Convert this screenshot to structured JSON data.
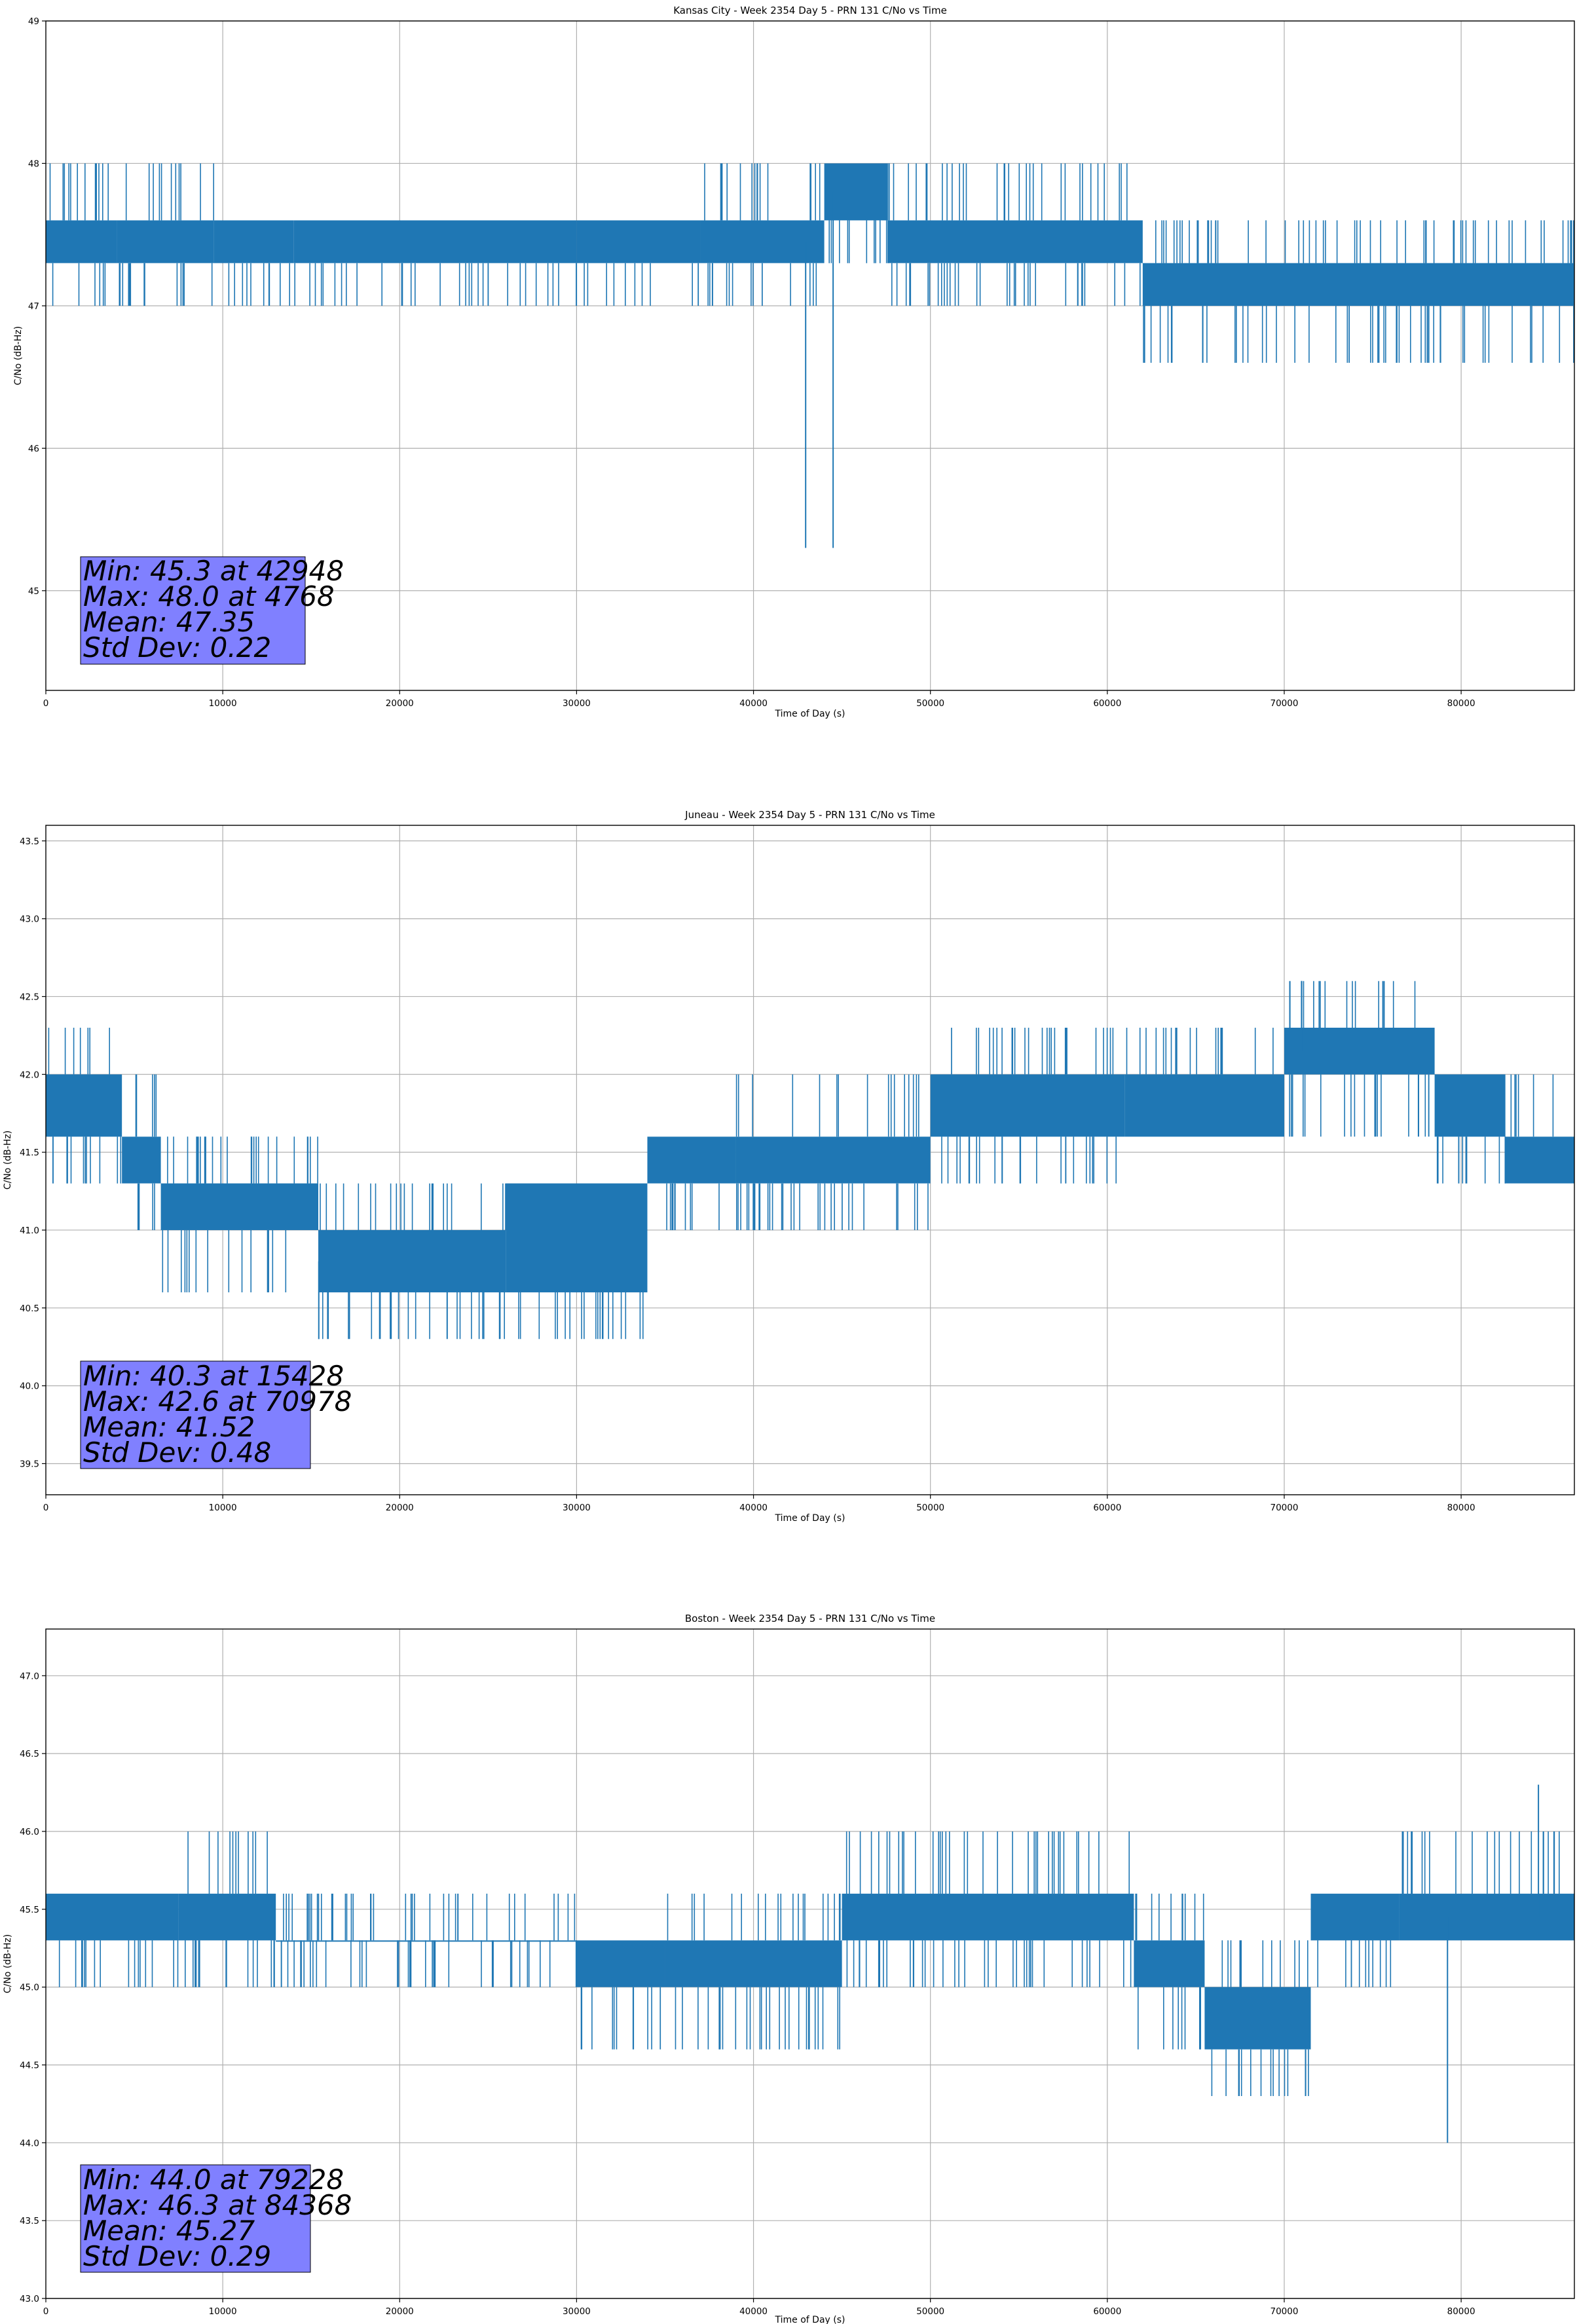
{
  "figure": {
    "series_color": "#1f77b4",
    "stats_box_color": "#8080ff"
  },
  "chart_data": [
    {
      "type": "line",
      "title": "Kansas City - Week 2354 Day 5 - PRN 131 C/No vs Time",
      "xlabel": "Time of Day (s)",
      "ylabel": "C/No (dB-Hz)",
      "xlim": [
        0,
        86400
      ],
      "ylim": [
        44.3,
        49.0
      ],
      "xticks": [
        0,
        10000,
        20000,
        30000,
        40000,
        50000,
        60000,
        70000,
        80000
      ],
      "yticks": [
        45,
        46,
        47,
        48,
        49
      ],
      "ytick_labels": [
        "45",
        "46",
        "47",
        "48",
        "49"
      ],
      "grid": true,
      "series": [
        {
          "name": "PRN 131 C/No",
          "levels": [
            47.0,
            47.3,
            47.6,
            48.0
          ],
          "segments": [
            {
              "x": [
                0,
                4000
              ],
              "base": 47.3,
              "upper": 47.6,
              "up_spike": 48.0,
              "down_spike": 47.0
            },
            {
              "x": [
                4000,
                9500
              ],
              "base": 47.3,
              "upper": 47.6,
              "up_spike": 48.0,
              "down_spike": 47.0
            },
            {
              "x": [
                9500,
                14000
              ],
              "base": 47.3,
              "upper": 47.6,
              "up_spike": 47.6,
              "down_spike": 47.0
            },
            {
              "x": [
                14000,
                30000
              ],
              "base": 47.3,
              "upper": 47.6,
              "up_spike": 47.6,
              "down_spike": 47.0
            },
            {
              "x": [
                30000,
                37000
              ],
              "base": 47.3,
              "upper": 47.6,
              "up_spike": 47.6,
              "down_spike": 47.0
            },
            {
              "x": [
                37000,
                44000
              ],
              "base": 47.3,
              "upper": 47.6,
              "up_spike": 48.0,
              "down_spike": 47.0
            },
            {
              "x": [
                44000,
                47600
              ],
              "base": 47.6,
              "upper": 48.0,
              "up_spike": 48.0,
              "down_spike": 47.3
            },
            {
              "x": [
                47600,
                62000
              ],
              "base": 47.3,
              "upper": 47.6,
              "up_spike": 48.0,
              "down_spike": 47.0
            },
            {
              "x": [
                62000,
                86400
              ],
              "base": 47.0,
              "upper": 47.3,
              "up_spike": 47.6,
              "down_spike": 46.6
            }
          ],
          "extremes": [
            {
              "x": 42948,
              "y": 45.3
            },
            {
              "x": 44500,
              "y": 45.3
            }
          ]
        }
      ],
      "stats": [
        "Min: 45.3 at 42948",
        "Max: 48.0 at 4768",
        "Mean: 47.35",
        "Std Dev: 0.22"
      ]
    },
    {
      "type": "line",
      "title": "Juneau - Week 2354 Day 5 - PRN 131 C/No vs Time",
      "xlabel": "Time of Day (s)",
      "ylabel": "C/No (dB-Hz)",
      "xlim": [
        0,
        86400
      ],
      "ylim": [
        39.3,
        43.6
      ],
      "xticks": [
        0,
        10000,
        20000,
        30000,
        40000,
        50000,
        60000,
        70000,
        80000
      ],
      "yticks": [
        39.5,
        40.0,
        40.5,
        41.0,
        41.5,
        42.0,
        42.5,
        43.0,
        43.5
      ],
      "ytick_labels": [
        "39.5",
        "40.0",
        "40.5",
        "41.0",
        "41.5",
        "42.0",
        "42.5",
        "43.0",
        "43.5"
      ],
      "grid": true,
      "series": [
        {
          "name": "PRN 131 C/No",
          "levels": [
            40.3,
            40.6,
            41.0,
            41.3,
            41.6,
            42.0,
            42.3,
            42.6
          ],
          "segments": [
            {
              "x": [
                0,
                4300
              ],
              "base": 41.6,
              "upper": 42.0,
              "up_spike": 42.3,
              "down_spike": 41.3
            },
            {
              "x": [
                4300,
                6500
              ],
              "base": 41.3,
              "upper": 41.6,
              "up_spike": 42.0,
              "down_spike": 41.0
            },
            {
              "x": [
                6500,
                15400
              ],
              "base": 41.0,
              "upper": 41.3,
              "up_spike": 41.6,
              "down_spike": 40.6
            },
            {
              "x": [
                15400,
                26000
              ],
              "base": 40.6,
              "upper": 41.0,
              "up_spike": 41.3,
              "down_spike": 40.3
            },
            {
              "x": [
                26000,
                34000
              ],
              "base": 40.6,
              "upper": 41.3,
              "up_spike": 41.3,
              "down_spike": 40.3
            },
            {
              "x": [
                34000,
                39000
              ],
              "base": 41.3,
              "upper": 41.6,
              "up_spike": 41.6,
              "down_spike": 41.0
            },
            {
              "x": [
                39000,
                50000
              ],
              "base": 41.3,
              "upper": 41.6,
              "up_spike": 42.0,
              "down_spike": 41.0
            },
            {
              "x": [
                50000,
                61000
              ],
              "base": 41.6,
              "upper": 42.0,
              "up_spike": 42.3,
              "down_spike": 41.3
            },
            {
              "x": [
                61000,
                70000
              ],
              "base": 41.6,
              "upper": 42.0,
              "up_spike": 42.3,
              "down_spike": 41.6
            },
            {
              "x": [
                70000,
                78500
              ],
              "base": 42.0,
              "upper": 42.3,
              "up_spike": 42.6,
              "down_spike": 41.6
            },
            {
              "x": [
                78500,
                82500
              ],
              "base": 41.6,
              "upper": 42.0,
              "up_spike": 42.0,
              "down_spike": 41.3
            },
            {
              "x": [
                82500,
                86400
              ],
              "base": 41.3,
              "upper": 41.6,
              "up_spike": 42.0,
              "down_spike": 41.3
            }
          ],
          "extremes": [
            {
              "x": 15428,
              "y": 40.3
            },
            {
              "x": 70978,
              "y": 42.6
            }
          ]
        }
      ],
      "stats": [
        "Min: 40.3 at 15428",
        "Max: 42.6 at 70978",
        "Mean: 41.52",
        "Std Dev: 0.48"
      ]
    },
    {
      "type": "line",
      "title": "Boston - Week 2354 Day 5 - PRN 131 C/No vs Time",
      "xlabel": "Time of Day (s)",
      "ylabel": "C/No (dB-Hz)",
      "xlim": [
        0,
        86400
      ],
      "ylim": [
        43.0,
        47.3
      ],
      "xticks": [
        0,
        10000,
        20000,
        30000,
        40000,
        50000,
        60000,
        70000,
        80000
      ],
      "yticks": [
        43.0,
        43.5,
        44.0,
        44.5,
        45.0,
        45.5,
        46.0,
        46.5,
        47.0
      ],
      "ytick_labels": [
        "43.0",
        "43.5",
        "44.0",
        "44.5",
        "45.0",
        "45.5",
        "46.0",
        "46.5",
        "47.0"
      ],
      "grid": true,
      "series": [
        {
          "name": "PRN 131 C/No",
          "levels": [
            44.0,
            44.3,
            44.6,
            45.0,
            45.3,
            45.6,
            46.0,
            46.3
          ],
          "segments": [
            {
              "x": [
                0,
                7500
              ],
              "base": 45.3,
              "upper": 45.6,
              "up_spike": 45.6,
              "down_spike": 45.0
            },
            {
              "x": [
                7500,
                13000
              ],
              "base": 45.3,
              "upper": 45.6,
              "up_spike": 46.0,
              "down_spike": 45.0
            },
            {
              "x": [
                13000,
                30000
              ],
              "base": 45.3,
              "upper": 45.3,
              "up_spike": 45.6,
              "down_spike": 45.0
            },
            {
              "x": [
                30000,
                35000
              ],
              "base": 45.0,
              "upper": 45.3,
              "up_spike": 45.3,
              "down_spike": 44.6
            },
            {
              "x": [
                35000,
                45000
              ],
              "base": 45.0,
              "upper": 45.3,
              "up_spike": 45.6,
              "down_spike": 44.6
            },
            {
              "x": [
                45000,
                61500
              ],
              "base": 45.3,
              "upper": 45.6,
              "up_spike": 46.0,
              "down_spike": 45.0
            },
            {
              "x": [
                61500,
                65500
              ],
              "base": 45.0,
              "upper": 45.3,
              "up_spike": 45.6,
              "down_spike": 44.6
            },
            {
              "x": [
                65500,
                71500
              ],
              "base": 44.6,
              "upper": 45.0,
              "up_spike": 45.3,
              "down_spike": 44.3
            },
            {
              "x": [
                71500,
                76500
              ],
              "base": 45.3,
              "upper": 45.6,
              "up_spike": 45.6,
              "down_spike": 45.0
            },
            {
              "x": [
                76500,
                86400
              ],
              "base": 45.3,
              "upper": 45.6,
              "up_spike": 46.0,
              "down_spike": 45.3
            }
          ],
          "extremes": [
            {
              "x": 79228,
              "y": 44.0
            },
            {
              "x": 84368,
              "y": 46.3
            }
          ]
        }
      ],
      "stats": [
        "Min: 44.0 at 79228",
        "Max: 46.3 at 84368",
        "Mean: 45.27",
        "Std Dev: 0.29"
      ]
    }
  ]
}
